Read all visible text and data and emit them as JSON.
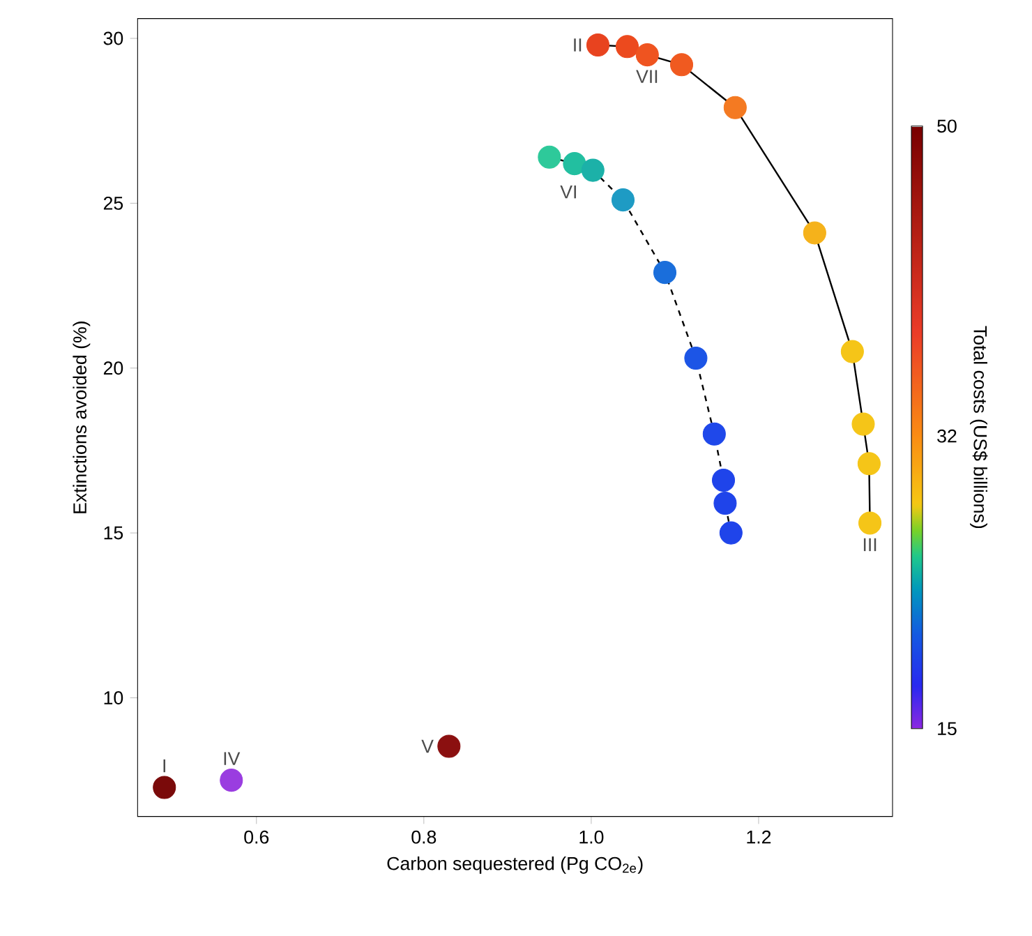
{
  "chart_data": {
    "type": "scatter",
    "xlabel": "Carbon sequestered (Pg CO$_{2e}$)",
    "ylabel": "Extinctions avoided (%)",
    "clabel": "Total costs (US$ billions)",
    "xlim": [
      0.458,
      1.36
    ],
    "ylim": [
      6.4,
      30.6
    ],
    "xticks": [
      0.6,
      0.8,
      {
        "value": 1.0,
        "label": "1.0"
      },
      1.2
    ],
    "yticks": [
      10,
      15,
      20,
      25,
      30
    ],
    "clim": [
      15,
      50
    ],
    "cticks": [
      15,
      32,
      50
    ],
    "marker": "circle",
    "series": [
      {
        "type": "line",
        "color": "#000000",
        "line_style": "solid",
        "x": [
          1.008,
          1.043,
          1.067,
          1.108,
          1.172,
          1.267,
          1.312,
          1.325,
          1.332,
          1.333
        ],
        "values": [
          29.8,
          29.75,
          29.5,
          29.2,
          27.9,
          24.1,
          20.5,
          18.3,
          17.1,
          15.3
        ],
        "colors": [
          "#e8431f",
          "#ec4a1e",
          "#ef5420",
          "#f05a20",
          "#f47a22",
          "#f5b21b",
          "#f5c518",
          "#f5c518",
          "#f5c518",
          "#f5c518"
        ]
      },
      {
        "type": "line",
        "color": "#000000",
        "line_style": "dashed",
        "x": [
          0.95,
          0.98,
          1.002,
          1.038,
          1.088,
          1.125,
          1.147,
          1.158,
          1.16,
          1.167
        ],
        "values": [
          26.4,
          26.2,
          26.0,
          25.1,
          22.9,
          20.3,
          18.0,
          16.6,
          15.9,
          15.0
        ],
        "colors": [
          "#2ec99a",
          "#22bfa0",
          "#1cb1a8",
          "#1e9bc4",
          "#1a6edb",
          "#1c55e6",
          "#1f48ea",
          "#1f44ea",
          "#1f44ea",
          "#1f44ea"
        ]
      },
      {
        "x": [
          0.49,
          0.57,
          0.83
        ],
        "values": [
          7.28,
          7.5,
          8.53
        ],
        "colors": [
          "#7a0a0a",
          "#9a3de0",
          "#8b1010"
        ]
      }
    ],
    "annotations": [
      {
        "text": "I",
        "x": 0.49,
        "y": 7.28
      },
      {
        "text": "IV",
        "x": 0.57,
        "y": 7.5
      },
      {
        "text": "V",
        "x": 0.83,
        "y": 8.53
      },
      {
        "text": "II",
        "x": 1.008,
        "y": 29.8
      },
      {
        "text": "VII",
        "x": 1.067,
        "y": 29.5
      },
      {
        "text": "VI",
        "x": 1.002,
        "y": 26.0
      },
      {
        "text": "III",
        "x": 1.333,
        "y": 15.3
      }
    ]
  }
}
